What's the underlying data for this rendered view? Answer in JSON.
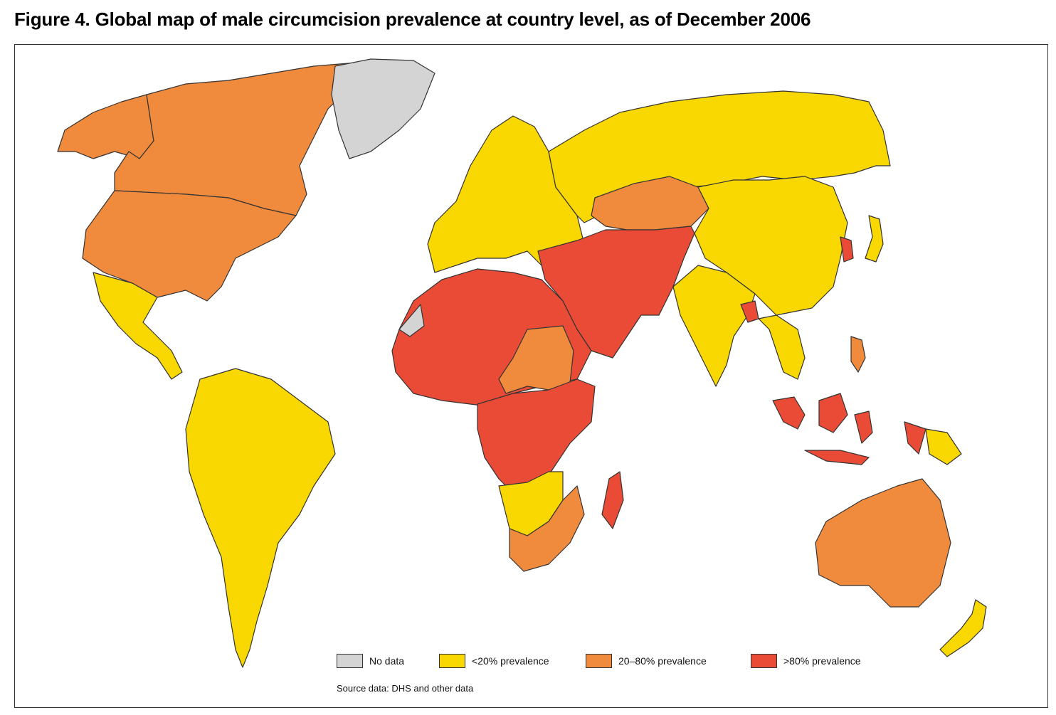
{
  "title": "Figure 4. Global map of male circumcision prevalence at country level, as of December 2006",
  "colors": {
    "no_data": "#d4d4d4",
    "low": "#f8d800",
    "mid": "#f08a3c",
    "high": "#e94b36",
    "border": "#333333"
  },
  "legend": [
    {
      "key": "no_data",
      "label": "No data"
    },
    {
      "key": "low",
      "label": "<20% prevalence"
    },
    {
      "key": "mid",
      "label": "20–80% prevalence"
    },
    {
      "key": "high",
      "label": ">80% prevalence"
    }
  ],
  "source": "Source data: DHS and other data",
  "regions": [
    {
      "name": "canada",
      "category": "mid"
    },
    {
      "name": "united-states",
      "category": "mid"
    },
    {
      "name": "alaska",
      "category": "mid"
    },
    {
      "name": "greenland",
      "category": "no_data"
    },
    {
      "name": "mexico-central-america",
      "category": "low"
    },
    {
      "name": "south-america",
      "category": "low"
    },
    {
      "name": "europe",
      "category": "low"
    },
    {
      "name": "russia",
      "category": "low"
    },
    {
      "name": "china",
      "category": "low"
    },
    {
      "name": "kazakhstan",
      "category": "mid"
    },
    {
      "name": "middle-east-central-asia",
      "category": "high"
    },
    {
      "name": "india",
      "category": "low"
    },
    {
      "name": "bangladesh",
      "category": "high"
    },
    {
      "name": "southeast-asia",
      "category": "low"
    },
    {
      "name": "indonesia-malaysia",
      "category": "high"
    },
    {
      "name": "philippines",
      "category": "mid"
    },
    {
      "name": "papua-new-guinea",
      "category": "low"
    },
    {
      "name": "north-west-africa",
      "category": "high"
    },
    {
      "name": "western-sahara",
      "category": "no_data"
    },
    {
      "name": "sudan-central-africa",
      "category": "mid"
    },
    {
      "name": "east-central-africa",
      "category": "high"
    },
    {
      "name": "southern-africa-low",
      "category": "low"
    },
    {
      "name": "southern-africa-mid",
      "category": "mid"
    },
    {
      "name": "madagascar",
      "category": "high"
    },
    {
      "name": "australia",
      "category": "mid"
    },
    {
      "name": "new-zealand",
      "category": "low"
    },
    {
      "name": "japan",
      "category": "low"
    },
    {
      "name": "korea",
      "category": "high"
    }
  ]
}
